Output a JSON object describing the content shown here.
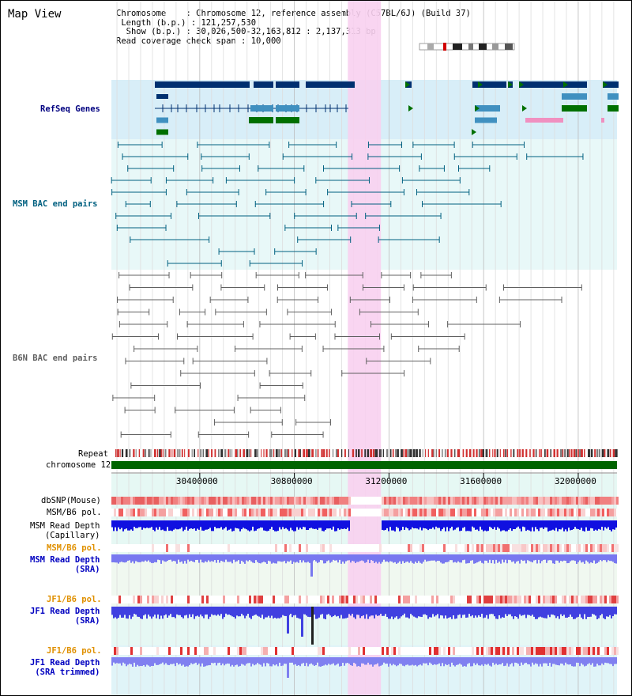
{
  "panel_title": "Map View",
  "info": {
    "chromosome_key": "Chromosome",
    "chromosome_value": "Chromosome 12, reference assembly (C57BL/6J) (Build 37)",
    "length_key": "Length (b.p.)",
    "length_value": "121,257,530",
    "show_key": "Show (b.p.)",
    "show_value": "30,026,500-32,163,812 : 2,137,313 bp",
    "coverage_key": "Read coverage check span",
    "coverage_value": "10,000"
  },
  "axis": {
    "start_bp": 30026500,
    "end_bp": 32163812,
    "tick_labels": [
      "30400000",
      "30800000",
      "31200000",
      "31600000",
      "32000000"
    ],
    "tick_values": [
      30400000,
      30800000,
      31200000,
      31600000,
      32000000
    ]
  },
  "highlight_region_bp": [
    31026000,
    31166000
  ],
  "tracks": {
    "refseq": "RefSeq Genes",
    "msm_bac": "MSM BAC end pairs",
    "b6n_bac": "B6N BAC end pairs",
    "repeat": "Repeat",
    "chromosome": "chromosome 12",
    "dbsnp": "dbSNP(Mouse)",
    "msm_b6_pol_1": "MSM/B6 pol.",
    "msm_depth_cap_1": "MSM Read Depth",
    "msm_depth_cap_2": "(Capillary)",
    "msm_b6_pol_2": "MSM/B6 pol.",
    "msm_depth_sra_1": "MSM Read Depth",
    "msm_depth_sra_2": "(SRA)",
    "jf1_b6_pol_1": "JF1/B6 pol.",
    "jf1_depth_sra_1": "JF1 Read Depth",
    "jf1_depth_sra_2": "(SRA)",
    "jf1_b6_pol_2": "JF1/B6 pol.",
    "jf1_depth_trim_1": "JF1 Read Depth",
    "jf1_depth_trim_2": "(SRA trimmed)"
  },
  "colors": {
    "refseq_label": "#000080",
    "msm_bac_label": "#006080",
    "b6n_bac_label": "#606060",
    "pol_label_orange": "#e09000",
    "depth_label_blue": "#0000c0",
    "highlight": "#f8d0f0",
    "chromosome_bar": "#006400",
    "gene_dark": "#003070",
    "gene_mid": "#4090c0",
    "gene_green": "#007000"
  }
}
